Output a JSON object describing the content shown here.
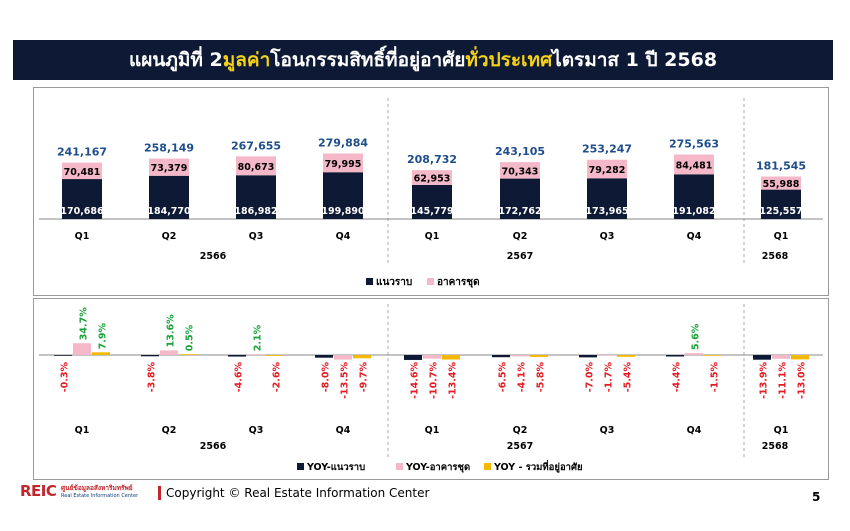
{
  "title": {
    "part1": "แผนภูมิที่ 2 ",
    "highlight1": "มูลค่า",
    "part2": " โอนกรรมสิทธิ์ที่อยู่อาศัย ",
    "highlight2": "ทั่วประเทศ",
    "part3": " ไตรมาส 1 ปี 2568"
  },
  "footer": {
    "logo_text": "REIC",
    "logo_sub_th": "ศูนย์ข้อมูลอสังหาริมทรัพย์",
    "logo_sub_en": "Real Estate Information Center",
    "copyright": "Copyright © Real Estate Information Center",
    "page_number": "5"
  },
  "colors": {
    "title_bg": "#0e1a35",
    "highlight": "#f5d218",
    "navy": "#0e1a35",
    "pink": "#f4b8c8",
    "yellow": "#f5b800",
    "total_label": "#1f4e8c",
    "positive": "#1aa33a",
    "negative": "#e31b23"
  },
  "chart_data": [
    {
      "type": "bar",
      "stacked": true,
      "categories": [
        "Q1",
        "Q2",
        "Q3",
        "Q4",
        "Q1",
        "Q2",
        "Q3",
        "Q4",
        "Q1"
      ],
      "year_groups": [
        {
          "label": "2566",
          "count": 4
        },
        {
          "label": "2567",
          "count": 4
        },
        {
          "label": "2568",
          "count": 1
        }
      ],
      "series": [
        {
          "name": "แนวราบ",
          "values": [
            170686,
            184770,
            186982,
            199890,
            145779,
            172762,
            173965,
            191082,
            125557
          ]
        },
        {
          "name": "อาคารชุด",
          "values": [
            70481,
            73379,
            80673,
            79995,
            62953,
            70343,
            79282,
            84481,
            55988
          ]
        }
      ],
      "totals": [
        241167,
        258149,
        267655,
        279884,
        208732,
        243105,
        253247,
        275563,
        181545
      ],
      "legend": "bottom"
    },
    {
      "type": "bar",
      "categories": [
        "Q1",
        "Q2",
        "Q3",
        "Q4",
        "Q1",
        "Q2",
        "Q3",
        "Q4",
        "Q1"
      ],
      "year_groups": [
        {
          "label": "2566",
          "count": 4
        },
        {
          "label": "2567",
          "count": 4
        },
        {
          "label": "2568",
          "count": 1
        }
      ],
      "series": [
        {
          "name": "YOY-แนวราบ",
          "values": [
            -0.3,
            -3.8,
            -4.6,
            -8.0,
            -14.6,
            -6.5,
            -7.0,
            -4.4,
            -13.9
          ]
        },
        {
          "name": "YOY-อาคารชุด",
          "values": [
            34.7,
            13.6,
            2.1,
            -13.5,
            -10.7,
            -4.1,
            -1.7,
            5.6,
            -11.1
          ]
        },
        {
          "name": "YOY - รวมที่อยู่อาศัย",
          "values": [
            7.9,
            0.5,
            -2.6,
            -9.7,
            -13.4,
            -5.8,
            -5.4,
            -1.5,
            -13.0
          ]
        }
      ],
      "value_labels": [
        [
          "-0.3%",
          "-3.8%",
          "-4.6%",
          "-8.0%",
          "-14.6%",
          "-6.5%",
          "-7.0%",
          "-4.4%",
          "-13.9%"
        ],
        [
          "34.7%",
          "13.6%",
          "2.1%",
          "-13.5%",
          "-10.7%",
          "-4.1%",
          "-1.7%",
          "5.6%",
          "-11.1%"
        ],
        [
          "7.9%",
          "0.5%",
          "-2.6%",
          "-9.7%",
          "-13.4%",
          "-5.8%",
          "-5.4%",
          "-1.5%",
          "-13.0%"
        ]
      ],
      "legend": "bottom"
    }
  ]
}
